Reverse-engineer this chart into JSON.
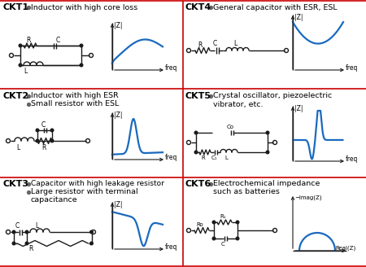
{
  "bg_color": "#ffffff",
  "line_color": "#1a1a1a",
  "blue_color": "#1a6abf",
  "red_color": "#cc0000",
  "gray_bullet": "#666666",
  "border_lw": 1.2,
  "circuit_lw": 1.0,
  "plot_lw": 1.6,
  "sections": [
    {
      "id": "CKT1",
      "desc1": "Inductor with high core loss",
      "desc2": "",
      "desc3": ""
    },
    {
      "id": "CKT2",
      "desc1": "Inductor with high ESR",
      "desc2": "Small resistor with ESL",
      "desc3": ""
    },
    {
      "id": "CKT3",
      "desc1": "Capacitor with high leakage resistor",
      "desc2": "Large resistor with terminal",
      "desc3": "capacitance"
    },
    {
      "id": "CKT4",
      "desc1": "General capacitor with ESR, ESL",
      "desc2": "",
      "desc3": ""
    },
    {
      "id": "CKT5",
      "desc1": "Crystal oscillator, piezoelectric",
      "desc2": "vibrator, etc.",
      "desc3": ""
    },
    {
      "id": "CKT6",
      "desc1": "Electrochemical impedance",
      "desc2": "such as batteries",
      "desc3": ""
    }
  ]
}
